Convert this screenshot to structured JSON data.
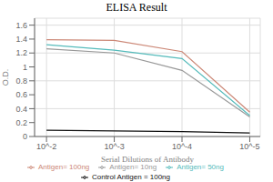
{
  "chart_data": {
    "type": "line",
    "title": "ELISA Result",
    "x_label": "Serial Dilutions of Antibody",
    "y_label": "O.D.",
    "x": [
      0.01,
      0.001,
      0.0001,
      1e-05
    ],
    "series": [
      {
        "name": "Control Antigen = 100ng",
        "color": "#111111",
        "values": [
          0.09,
          0.08,
          0.07,
          0.05
        ]
      },
      {
        "name": "Antigen= 10ng",
        "color": "#999999",
        "values": [
          1.26,
          1.2,
          0.95,
          0.28
        ]
      },
      {
        "name": "Antigen= 50ng",
        "color": "#55bbbb",
        "values": [
          1.32,
          1.24,
          1.12,
          0.3
        ]
      },
      {
        "name": "Antigen= 100ng",
        "color": "#cc8877",
        "values": [
          1.39,
          1.38,
          1.22,
          0.35
        ]
      }
    ],
    "log": "x",
    "xlim": [
      0.015,
      7e-06
    ],
    "xticks": [
      {
        "value": 0.01,
        "label": "10^-2"
      },
      {
        "value": 0.001,
        "label": "10^-3"
      },
      {
        "value": 0.0001,
        "label": "10^-4"
      },
      {
        "value": 1e-05,
        "label": "10^-5"
      }
    ],
    "ylim": [
      0,
      1.7
    ],
    "yticks": [
      0,
      0.2,
      0.4,
      0.6,
      0.8,
      1.0,
      1.2,
      1.4,
      1.6
    ],
    "grid": true,
    "legend": "bottom"
  }
}
